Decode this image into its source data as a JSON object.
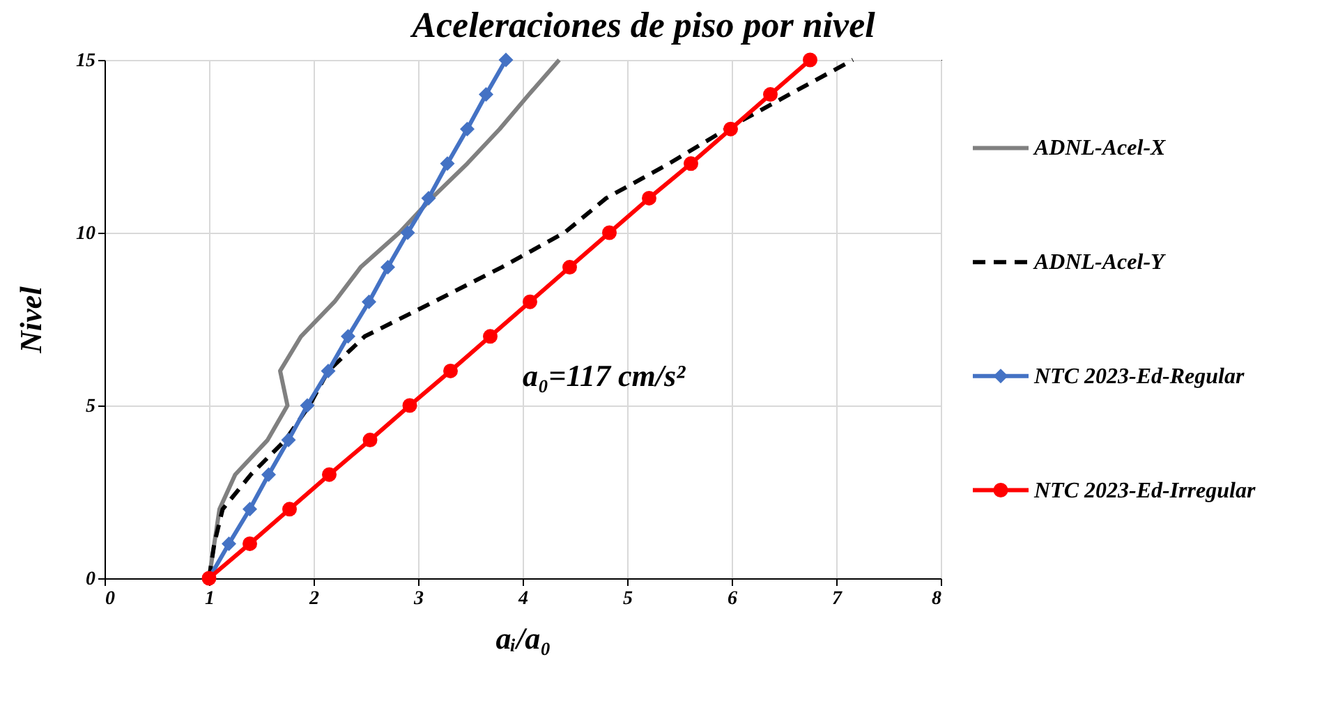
{
  "chart_data": {
    "type": "line",
    "title": "Aceleraciones de piso por nivel",
    "xlabel": "aᵢ/a₀",
    "ylabel": "Nivel",
    "annotations": [
      "a₀=117 cm/s²"
    ],
    "xlim": [
      0,
      8
    ],
    "xticks": [
      0,
      1,
      2,
      3,
      4,
      5,
      6,
      7,
      8
    ],
    "ylim": [
      0,
      15
    ],
    "yticks": [
      0,
      5,
      10,
      15
    ],
    "grid": true,
    "legend": "right",
    "series": [
      {
        "name": "ADNL-Acel-X",
        "color": "#808080",
        "marker": "none",
        "line_style": "solid",
        "x": [
          1,
          1.1,
          1.25,
          1.56,
          1.75,
          1.68,
          1.88,
          2.2,
          2.45,
          2.82,
          3.13,
          3.47,
          3.78,
          4.06,
          4.35
        ],
        "values": [
          0,
          2,
          3,
          4,
          5,
          6,
          7,
          8,
          9,
          10,
          11,
          12,
          13,
          14,
          15
        ]
      },
      {
        "name": "ADNL-Acel-Y",
        "color": "#000000",
        "marker": "none",
        "line_style": "dashed",
        "x": [
          1,
          1.05,
          1.13,
          1.4,
          1.73,
          1.96,
          2.14,
          2.49,
          3.15,
          3.8,
          4.4,
          4.8,
          5.4,
          5.95,
          6.55,
          7.16
        ],
        "values": [
          0,
          1,
          2,
          3,
          4,
          5,
          6,
          7,
          8,
          9,
          10,
          11,
          12,
          13,
          14,
          15
        ]
      },
      {
        "name": "NTC 2023-Ed-Regular",
        "color": "#4472c4",
        "marker": "diamond",
        "line_style": "solid",
        "x": [
          1,
          1.19,
          1.39,
          1.57,
          1.76,
          1.94,
          2.14,
          2.33,
          2.53,
          2.71,
          2.9,
          3.1,
          3.28,
          3.47,
          3.65,
          3.84
        ],
        "values": [
          0,
          1,
          2,
          3,
          4,
          5,
          6,
          7,
          8,
          9,
          10,
          11,
          12,
          13,
          14,
          15
        ]
      },
      {
        "name": "NTC 2023-Ed-Irregular",
        "color": "#ff0000",
        "marker": "circle",
        "line_style": "solid",
        "x": [
          1,
          1.39,
          1.77,
          2.15,
          2.54,
          2.92,
          3.31,
          3.69,
          4.07,
          4.45,
          4.83,
          5.21,
          5.61,
          5.99,
          6.37,
          6.75
        ],
        "values": [
          0,
          1,
          2,
          3,
          4,
          5,
          6,
          7,
          8,
          9,
          10,
          11,
          12,
          13,
          14,
          15
        ]
      }
    ]
  }
}
